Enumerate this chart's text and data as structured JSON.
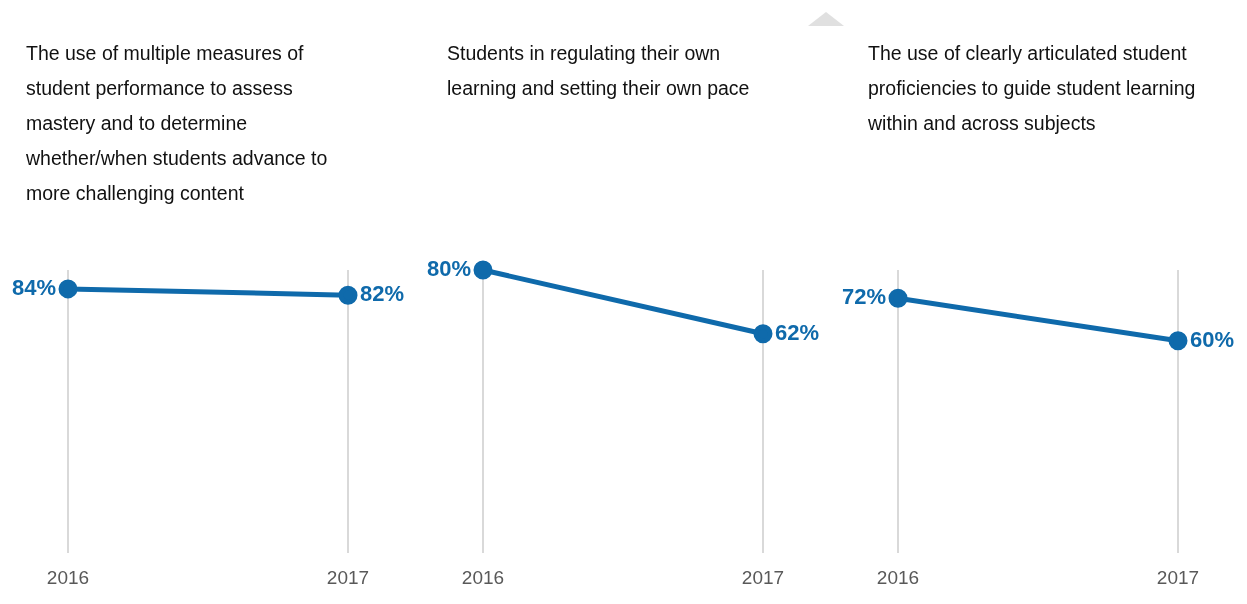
{
  "chart_data": [
    {
      "type": "line",
      "title": "The use of multiple measures of student performance to assess mastery and to determine whether/when students advance to more challenging content",
      "categories": [
        "2016",
        "2017"
      ],
      "series": [
        {
          "color": "#0f6aab",
          "values": [
            84,
            82
          ],
          "value_labels": [
            "84%",
            "82%"
          ]
        }
      ],
      "grid": "x",
      "marker": "circle",
      "tick_labels": "x"
    },
    {
      "type": "line",
      "title": "Students in regulating their own learning and setting their own pace",
      "categories": [
        "2016",
        "2017"
      ],
      "series": [
        {
          "color": "#0f6aab",
          "values": [
            80,
            62
          ],
          "value_labels": [
            "80%",
            "62%"
          ]
        }
      ],
      "grid": "x",
      "marker": "circle",
      "tick_labels": "x"
    },
    {
      "type": "line",
      "title": "The use of clearly articulated student proficiencies to guide student learning within and across subjects",
      "categories": [
        "2016",
        "2017"
      ],
      "series": [
        {
          "color": "#0f6aab",
          "values": [
            72,
            60
          ],
          "value_labels": [
            "72%",
            "60%"
          ]
        }
      ],
      "grid": "x",
      "marker": "circle",
      "tick_labels": "x"
    }
  ]
}
